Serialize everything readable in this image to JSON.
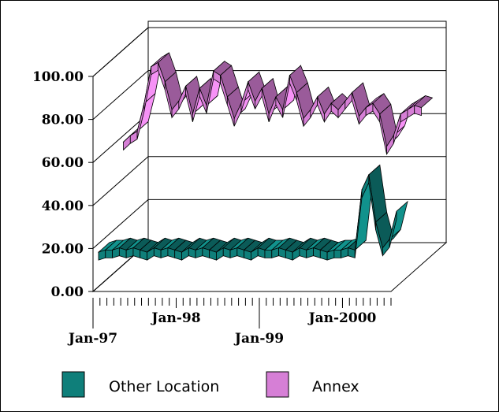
{
  "chart_data": {
    "type": "area",
    "title": "",
    "xlabel": "",
    "ylabel": "",
    "ylim": [
      0,
      100
    ],
    "yticks": [
      "0.00",
      "20.00",
      "40.00",
      "60.00",
      "80.00",
      "100.00"
    ],
    "grid": true,
    "legend_position": "bottom",
    "x_tick_labels": [
      "Jan-97",
      "Jan-98",
      "Jan-99",
      "Jan-2000"
    ],
    "x_tick_label_months": [
      0,
      12,
      24,
      36
    ],
    "months_count": 44,
    "series": [
      {
        "name": "Other Location",
        "color": "#0f7f7a",
        "values": [
          16,
          17,
          17,
          18,
          17,
          18,
          17,
          16,
          18,
          17,
          18,
          17,
          16,
          18,
          17,
          18,
          17,
          16,
          18,
          17,
          18,
          17,
          16,
          18,
          17,
          17,
          18,
          17,
          16,
          18,
          17,
          18,
          17,
          16,
          17,
          17,
          18,
          17,
          45,
          52,
          30,
          18,
          22,
          35
        ]
      },
      {
        "name": "Annex",
        "color": "#d67fd6",
        "values": [
          57,
          60,
          62,
          75,
          92,
          94,
          85,
          72,
          76,
          83,
          70,
          82,
          74,
          90,
          88,
          78,
          68,
          75,
          85,
          76,
          82,
          70,
          78,
          72,
          88,
          80,
          68,
          72,
          78,
          70,
          75,
          72,
          76,
          80,
          69,
          73,
          75,
          70,
          55,
          60,
          70,
          72,
          74,
          73
        ]
      }
    ]
  }
}
